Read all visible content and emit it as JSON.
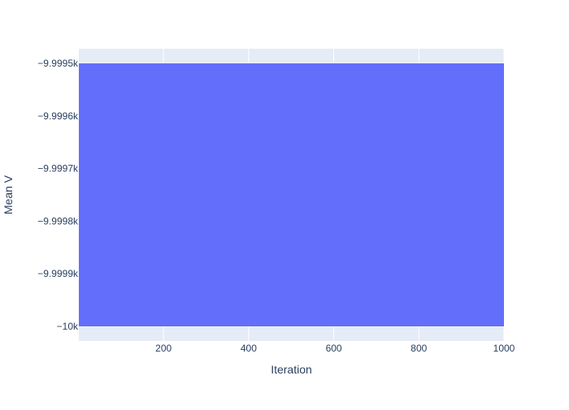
{
  "chart_data": {
    "type": "area",
    "title": "",
    "xlabel": "Iteration",
    "ylabel": "Mean V",
    "xlim": [
      1,
      1000
    ],
    "ylim": [
      -10000,
      -9999.45
    ],
    "x_ticks": [
      200,
      400,
      600,
      800,
      1000
    ],
    "x_tick_labels": [
      "200",
      "400",
      "600",
      "800",
      "1000"
    ],
    "y_ticks": [
      -9999.5,
      -9999.6,
      -9999.7,
      -9999.8,
      -9999.9,
      -10000
    ],
    "y_tick_labels": [
      "−9.9995k",
      "−9.9996k",
      "−9.9997k",
      "−9.9998k",
      "−9.9999k",
      "−10k"
    ],
    "grid": true,
    "fill_description": "Band filled uniformly between y = -10000 and y = -9999.5 across all iterations",
    "series": [
      {
        "values_lower": -10000,
        "values_upper": -9999.5,
        "x": [
          1,
          1000
        ],
        "color": "#636efa"
      }
    ],
    "colors": {
      "plot_background": "#e5ecf6",
      "gridline": "#ffffff",
      "text": "#2a3f5f",
      "series": "#636efa"
    }
  }
}
